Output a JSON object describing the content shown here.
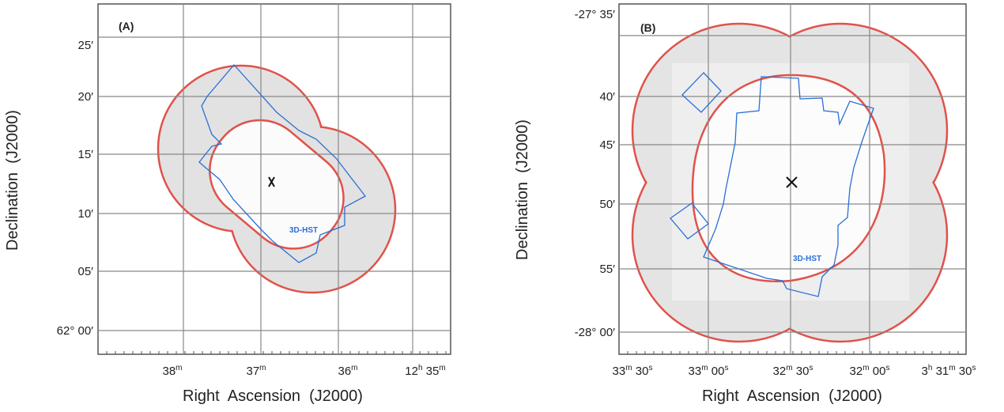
{
  "panels": [
    {
      "label": "(A)",
      "annotation": "3D-HST",
      "y_axis_title": "Declination  (J2000)",
      "x_axis_title": "Right  Ascension  (J2000)",
      "y_ticks": [
        "25′",
        "20′",
        "15′",
        "10′",
        "05′",
        "62° 00′"
      ],
      "x_ticks": [
        [
          "38",
          "m"
        ],
        [
          "37",
          "m"
        ],
        [
          "36",
          "m"
        ],
        [
          "12",
          "h",
          " 35",
          "m"
        ]
      ]
    },
    {
      "label": "(B)",
      "annotation": "3D-HST",
      "y_axis_title": "Declination  (J2000)",
      "x_axis_title": "Right  Ascension  (J2000)",
      "y_ticks": [
        "-27° 35′",
        "40′",
        "45′",
        "50′",
        "55′",
        "-28° 00′"
      ],
      "x_ticks": [
        [
          "33",
          "m",
          " 30",
          "s"
        ],
        [
          "33",
          "m",
          " 00",
          "s"
        ],
        [
          "32",
          "m",
          " 30",
          "s"
        ],
        [
          "32",
          "m",
          " 00",
          "s"
        ],
        [
          "3",
          "h",
          " 31",
          "m",
          " 30",
          "s"
        ]
      ]
    }
  ]
}
